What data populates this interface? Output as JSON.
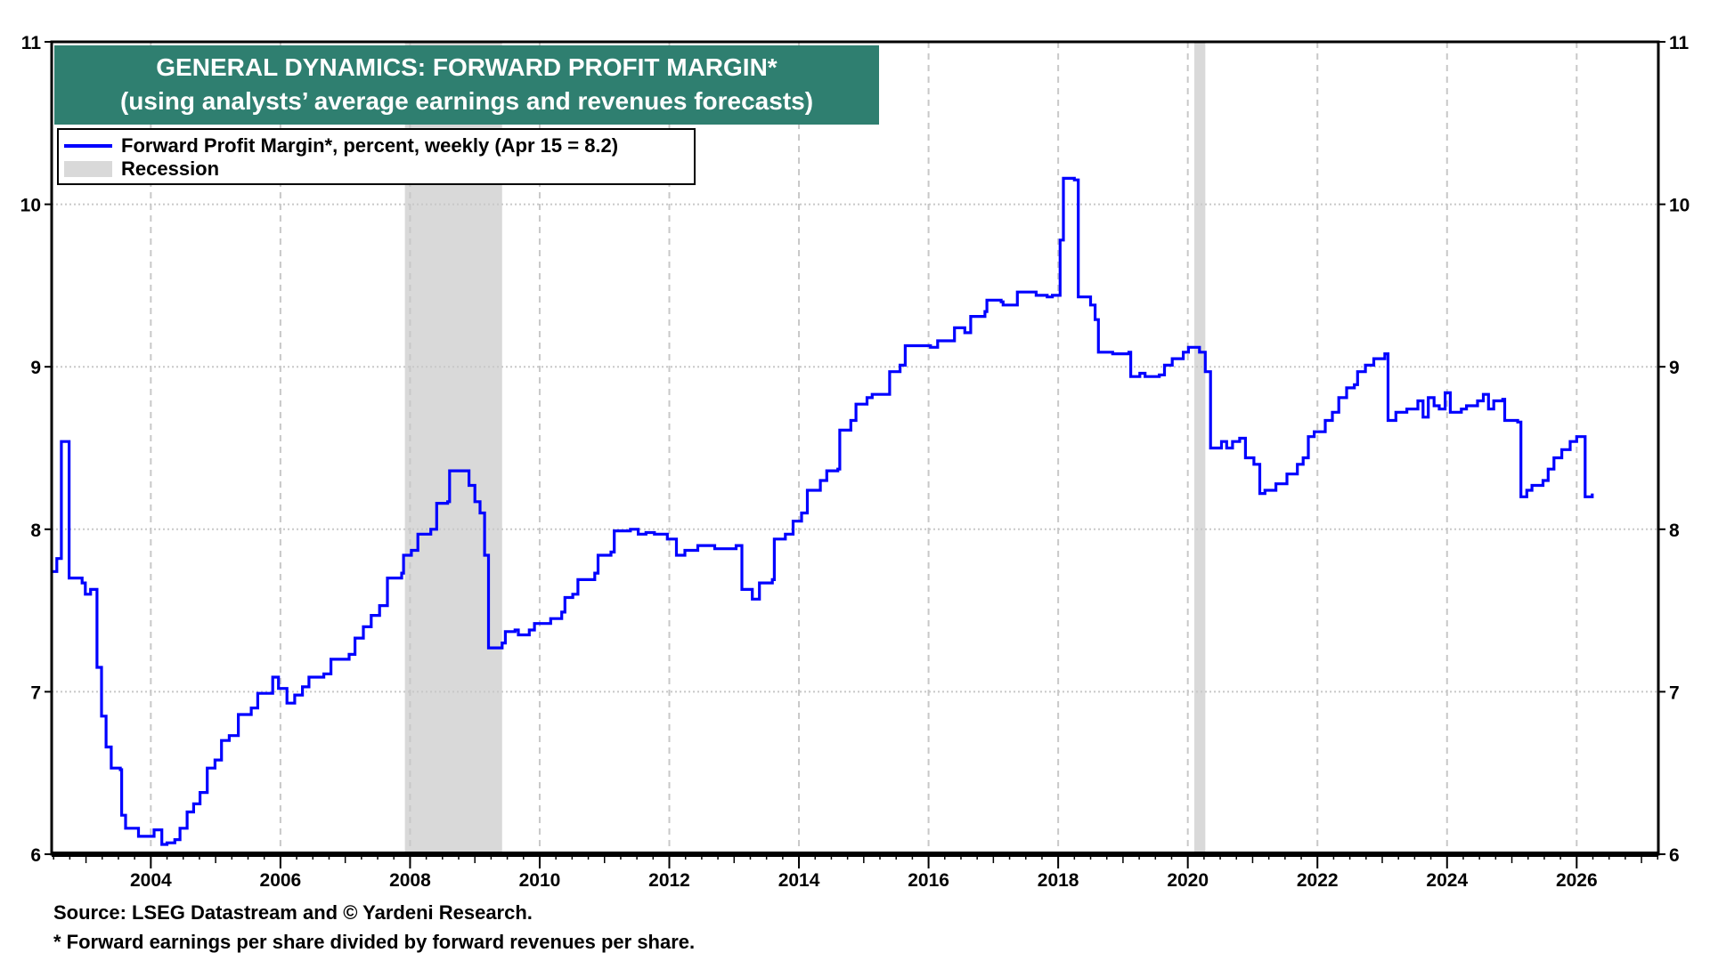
{
  "chart_data": {
    "type": "line",
    "title": "GENERAL DYNAMICS: FORWARD PROFIT MARGIN*",
    "subtitle": "(using analysts’ average earnings and revenues forecasts)",
    "xlabel": "",
    "ylabel": "",
    "xlim": [
      2002.47,
      2027.26
    ],
    "ylim": [
      6,
      11
    ],
    "y_ticks": [
      6,
      7,
      8,
      9,
      10,
      11
    ],
    "y_tick_labels": [
      "6",
      "7",
      "8",
      "9",
      "10",
      "11"
    ],
    "x_ticks": [
      2004,
      2006,
      2008,
      2010,
      2012,
      2014,
      2016,
      2018,
      2020,
      2022,
      2024,
      2026
    ],
    "x_tick_labels": [
      "2004",
      "2006",
      "2008",
      "2010",
      "2012",
      "2014",
      "2016",
      "2018",
      "2020",
      "2022",
      "2024",
      "2026"
    ],
    "grid": true,
    "legend_position": "top-left",
    "legend": [
      "Forward Profit Margin*, percent, weekly (Apr 15 = 8.2)",
      "Recession"
    ],
    "recessions": [
      [
        2007.92,
        2009.42
      ],
      [
        2020.1,
        2020.27
      ]
    ],
    "series": [
      {
        "name": "Forward Profit Margin",
        "color": "#0000ff",
        "points": [
          [
            2002.47,
            7.74
          ],
          [
            2002.55,
            7.82
          ],
          [
            2002.62,
            8.54
          ],
          [
            2002.72,
            8.54
          ],
          [
            2002.74,
            7.7
          ],
          [
            2002.94,
            7.67
          ],
          [
            2002.99,
            7.6
          ],
          [
            2003.07,
            7.63
          ],
          [
            2003.16,
            7.63
          ],
          [
            2003.17,
            7.15
          ],
          [
            2003.23,
            7.15
          ],
          [
            2003.24,
            6.85
          ],
          [
            2003.31,
            6.66
          ],
          [
            2003.39,
            6.53
          ],
          [
            2003.53,
            6.52
          ],
          [
            2003.55,
            6.24
          ],
          [
            2003.61,
            6.16
          ],
          [
            2003.78,
            6.16
          ],
          [
            2003.81,
            6.11
          ],
          [
            2004.0,
            6.11
          ],
          [
            2004.05,
            6.15
          ],
          [
            2004.15,
            6.15
          ],
          [
            2004.17,
            6.06
          ],
          [
            2004.24,
            6.06
          ],
          [
            2004.25,
            6.07
          ],
          [
            2004.37,
            6.09
          ],
          [
            2004.45,
            6.16
          ],
          [
            2004.56,
            6.26
          ],
          [
            2004.66,
            6.31
          ],
          [
            2004.76,
            6.38
          ],
          [
            2004.87,
            6.53
          ],
          [
            2004.99,
            6.58
          ],
          [
            2005.09,
            6.7
          ],
          [
            2005.21,
            6.73
          ],
          [
            2005.35,
            6.86
          ],
          [
            2005.55,
            6.9
          ],
          [
            2005.65,
            6.99
          ],
          [
            2005.8,
            6.99
          ],
          [
            2005.88,
            7.09
          ],
          [
            2005.97,
            7.02
          ],
          [
            2006.1,
            6.93
          ],
          [
            2006.22,
            6.98
          ],
          [
            2006.34,
            7.03
          ],
          [
            2006.44,
            7.09
          ],
          [
            2006.67,
            7.11
          ],
          [
            2006.78,
            7.2
          ],
          [
            2007.06,
            7.23
          ],
          [
            2007.15,
            7.33
          ],
          [
            2007.28,
            7.4
          ],
          [
            2007.4,
            7.47
          ],
          [
            2007.53,
            7.53
          ],
          [
            2007.65,
            7.7
          ],
          [
            2007.87,
            7.73
          ],
          [
            2007.9,
            7.84
          ],
          [
            2008.02,
            7.87
          ],
          [
            2008.12,
            7.97
          ],
          [
            2008.32,
            8.0
          ],
          [
            2008.41,
            8.16
          ],
          [
            2008.58,
            8.17
          ],
          [
            2008.61,
            8.36
          ],
          [
            2008.81,
            8.36
          ],
          [
            2008.91,
            8.27
          ],
          [
            2009.0,
            8.17
          ],
          [
            2009.08,
            8.1
          ],
          [
            2009.15,
            7.84
          ],
          [
            2009.21,
            7.27
          ],
          [
            2009.42,
            7.3
          ],
          [
            2009.47,
            7.37
          ],
          [
            2009.62,
            7.38
          ],
          [
            2009.67,
            7.35
          ],
          [
            2009.84,
            7.38
          ],
          [
            2009.92,
            7.42
          ],
          [
            2010.17,
            7.45
          ],
          [
            2010.34,
            7.49
          ],
          [
            2010.39,
            7.58
          ],
          [
            2010.51,
            7.6
          ],
          [
            2010.59,
            7.69
          ],
          [
            2010.85,
            7.73
          ],
          [
            2010.9,
            7.84
          ],
          [
            2011.1,
            7.86
          ],
          [
            2011.15,
            7.99
          ],
          [
            2011.4,
            8.0
          ],
          [
            2011.52,
            7.97
          ],
          [
            2011.64,
            7.98
          ],
          [
            2011.77,
            7.97
          ],
          [
            2011.97,
            7.94
          ],
          [
            2012.11,
            7.84
          ],
          [
            2012.24,
            7.87
          ],
          [
            2012.44,
            7.9
          ],
          [
            2012.7,
            7.88
          ],
          [
            2012.9,
            7.88
          ],
          [
            2013.03,
            7.9
          ],
          [
            2013.12,
            7.63
          ],
          [
            2013.28,
            7.57
          ],
          [
            2013.39,
            7.67
          ],
          [
            2013.59,
            7.69
          ],
          [
            2013.62,
            7.94
          ],
          [
            2013.79,
            7.97
          ],
          [
            2013.91,
            8.05
          ],
          [
            2014.04,
            8.1
          ],
          [
            2014.13,
            8.24
          ],
          [
            2014.33,
            8.3
          ],
          [
            2014.43,
            8.36
          ],
          [
            2014.6,
            8.37
          ],
          [
            2014.63,
            8.61
          ],
          [
            2014.8,
            8.67
          ],
          [
            2014.88,
            8.77
          ],
          [
            2015.05,
            8.81
          ],
          [
            2015.13,
            8.83
          ],
          [
            2015.34,
            8.83
          ],
          [
            2015.4,
            8.97
          ],
          [
            2015.56,
            9.01
          ],
          [
            2015.64,
            9.13
          ],
          [
            2015.94,
            9.13
          ],
          [
            2016.03,
            9.12
          ],
          [
            2016.14,
            9.16
          ],
          [
            2016.36,
            9.16
          ],
          [
            2016.4,
            9.24
          ],
          [
            2016.56,
            9.21
          ],
          [
            2016.65,
            9.31
          ],
          [
            2016.87,
            9.34
          ],
          [
            2016.9,
            9.41
          ],
          [
            2017.12,
            9.4
          ],
          [
            2017.15,
            9.38
          ],
          [
            2017.36,
            9.38
          ],
          [
            2017.37,
            9.46
          ],
          [
            2017.66,
            9.44
          ],
          [
            2017.83,
            9.43
          ],
          [
            2017.91,
            9.44
          ],
          [
            2018.03,
            9.78
          ],
          [
            2018.08,
            10.16
          ],
          [
            2018.25,
            10.15
          ],
          [
            2018.31,
            9.43
          ],
          [
            2018.42,
            9.43
          ],
          [
            2018.5,
            9.38
          ],
          [
            2018.57,
            9.29
          ],
          [
            2018.62,
            9.09
          ],
          [
            2018.84,
            9.08
          ],
          [
            2019.09,
            9.09
          ],
          [
            2019.12,
            8.94
          ],
          [
            2019.26,
            8.96
          ],
          [
            2019.34,
            8.94
          ],
          [
            2019.56,
            8.95
          ],
          [
            2019.64,
            9.01
          ],
          [
            2019.76,
            9.05
          ],
          [
            2019.93,
            9.09
          ],
          [
            2020.01,
            9.12
          ],
          [
            2020.18,
            9.09
          ],
          [
            2020.27,
            8.97
          ],
          [
            2020.35,
            8.5
          ],
          [
            2020.52,
            8.54
          ],
          [
            2020.6,
            8.5
          ],
          [
            2020.69,
            8.54
          ],
          [
            2020.8,
            8.56
          ],
          [
            2020.89,
            8.44
          ],
          [
            2021.02,
            8.4
          ],
          [
            2021.11,
            8.22
          ],
          [
            2021.19,
            8.24
          ],
          [
            2021.36,
            8.28
          ],
          [
            2021.53,
            8.34
          ],
          [
            2021.69,
            8.4
          ],
          [
            2021.78,
            8.44
          ],
          [
            2021.86,
            8.57
          ],
          [
            2021.95,
            8.6
          ],
          [
            2022.12,
            8.67
          ],
          [
            2022.23,
            8.72
          ],
          [
            2022.33,
            8.81
          ],
          [
            2022.45,
            8.87
          ],
          [
            2022.57,
            8.89
          ],
          [
            2022.62,
            8.97
          ],
          [
            2022.74,
            9.01
          ],
          [
            2022.87,
            9.05
          ],
          [
            2023.04,
            9.08
          ],
          [
            2023.09,
            8.67
          ],
          [
            2023.21,
            8.72
          ],
          [
            2023.38,
            8.74
          ],
          [
            2023.55,
            8.79
          ],
          [
            2023.63,
            8.69
          ],
          [
            2023.71,
            8.81
          ],
          [
            2023.8,
            8.76
          ],
          [
            2023.88,
            8.74
          ],
          [
            2023.97,
            8.84
          ],
          [
            2024.05,
            8.72
          ],
          [
            2024.22,
            8.74
          ],
          [
            2024.3,
            8.76
          ],
          [
            2024.47,
            8.79
          ],
          [
            2024.56,
            8.83
          ],
          [
            2024.64,
            8.74
          ],
          [
            2024.72,
            8.79
          ],
          [
            2024.86,
            8.8
          ],
          [
            2024.89,
            8.67
          ],
          [
            2025.09,
            8.66
          ],
          [
            2025.14,
            8.2
          ],
          [
            2025.23,
            8.24
          ],
          [
            2025.31,
            8.27
          ],
          [
            2025.39,
            8.27
          ],
          [
            2025.48,
            8.3
          ],
          [
            2025.56,
            8.37
          ],
          [
            2025.65,
            8.44
          ],
          [
            2025.77,
            8.49
          ],
          [
            2025.9,
            8.54
          ],
          [
            2026.0,
            8.57
          ],
          [
            2026.1,
            8.57
          ],
          [
            2026.13,
            8.2
          ],
          [
            2026.24,
            8.22
          ]
        ]
      }
    ]
  },
  "legend": {
    "series_label": "Forward Profit Margin*, percent, weekly (Apr 15 = 8.2)",
    "recession_label": "Recession"
  },
  "footer": {
    "source": "Source: LSEG Datastream and © Yardeni Research.",
    "note": "* Forward earnings per share divided by forward revenues per share."
  }
}
